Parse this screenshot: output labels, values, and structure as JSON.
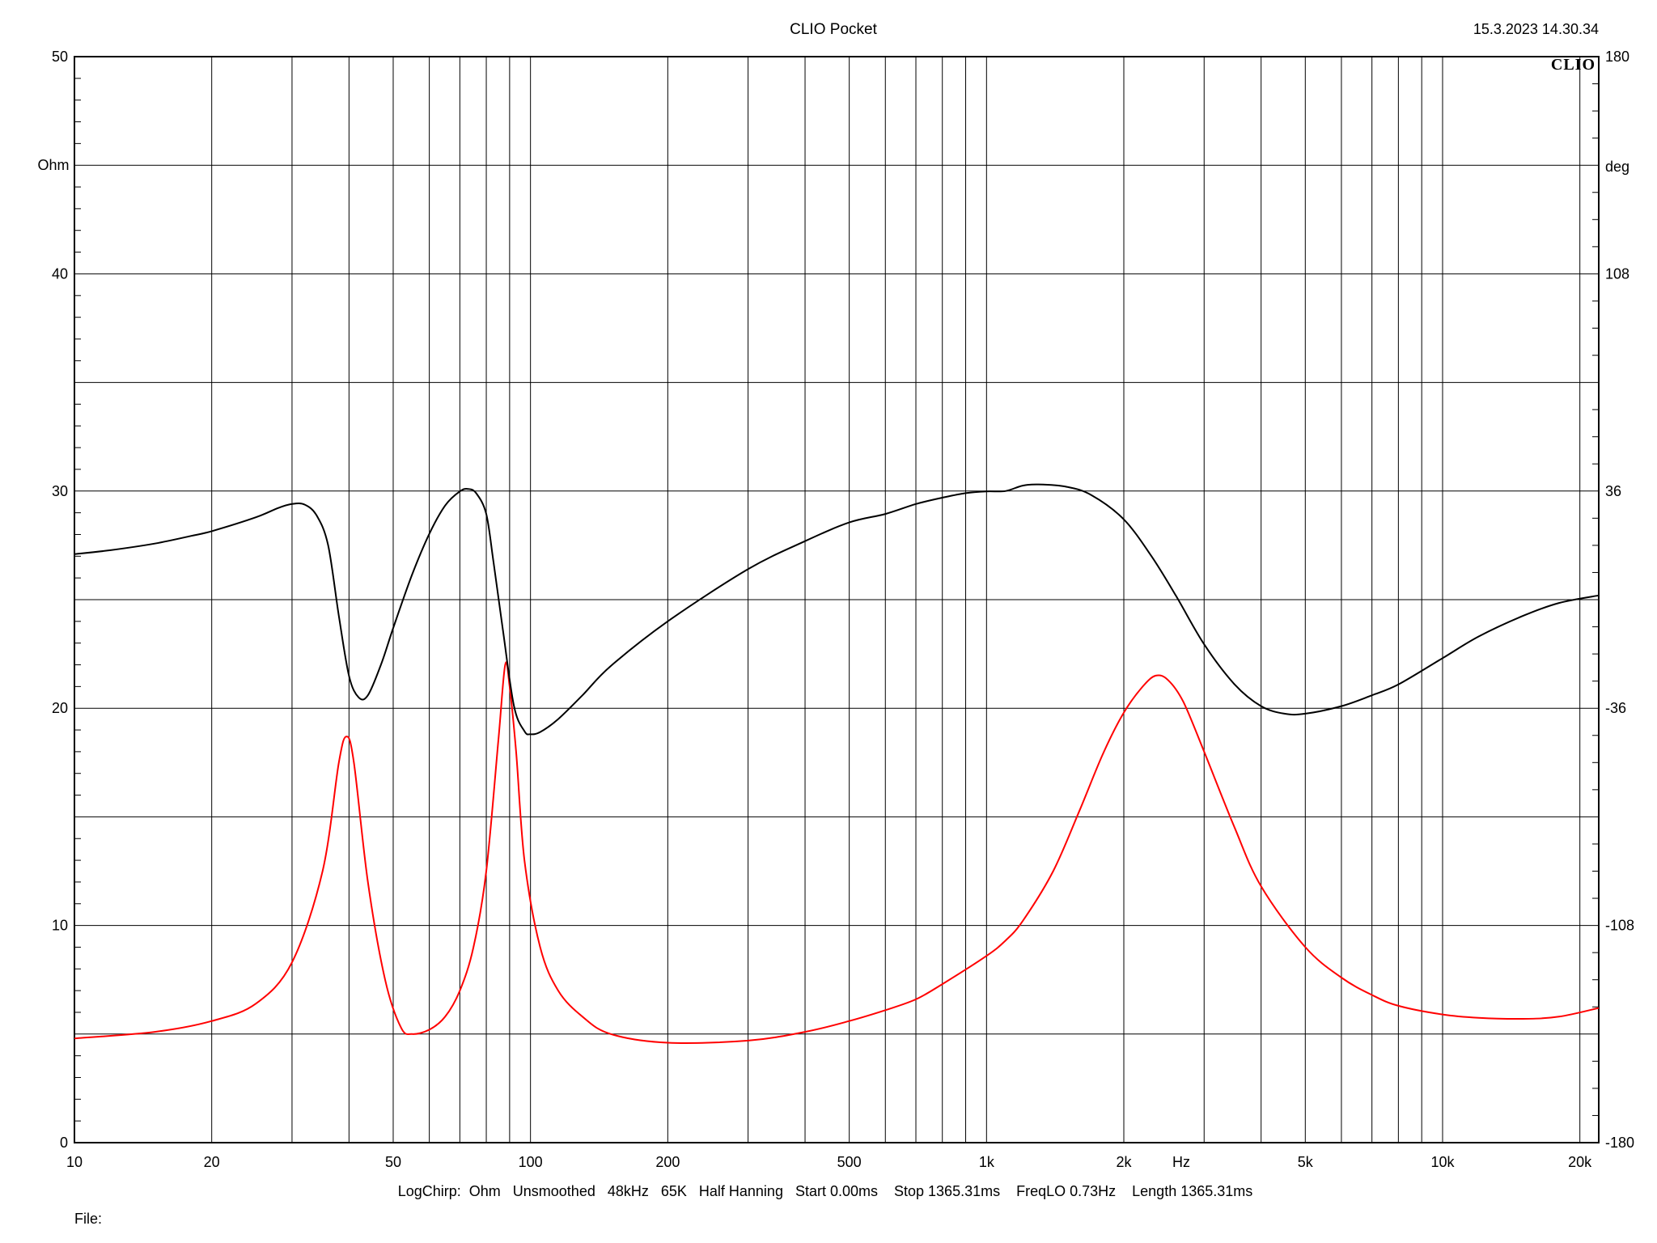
{
  "header": {
    "title": "CLIO Pocket",
    "timestamp": "15.3.2023 14.30.34",
    "logo_text": "CLIO"
  },
  "footer": {
    "settings": "LogChirp:  Ohm   Unsmoothed   48kHz   65K   Half Hanning   Start 0.00ms    Stop 1365.31ms    FreqLO 0.73Hz    Length 1365.31ms",
    "file_label": "File:"
  },
  "chart_data": {
    "type": "line",
    "x_scale": "log",
    "xlim": [
      10,
      22000
    ],
    "x_unit": "Hz",
    "x_tick_labels": [
      {
        "value": 10,
        "label": "10"
      },
      {
        "value": 20,
        "label": "20"
      },
      {
        "value": 50,
        "label": "50"
      },
      {
        "value": 100,
        "label": "100"
      },
      {
        "value": 200,
        "label": "200"
      },
      {
        "value": 500,
        "label": "500"
      },
      {
        "value": 1000,
        "label": "1k"
      },
      {
        "value": 2000,
        "label": "2k"
      },
      {
        "value": 5000,
        "label": "5k"
      },
      {
        "value": 10000,
        "label": "10k"
      },
      {
        "value": 20000,
        "label": "20k"
      }
    ],
    "y_left": {
      "unit": "Ohm",
      "lim": [
        0,
        50
      ],
      "tick_labels": [
        "0",
        "10",
        "20",
        "30",
        "40",
        "50"
      ],
      "tick_values": [
        0,
        10,
        20,
        30,
        40,
        50
      ]
    },
    "y_right": {
      "unit": "deg",
      "lim": [
        -180,
        180
      ],
      "tick_labels": [
        "-180",
        "-108",
        "-36",
        "36",
        "108",
        "180"
      ],
      "tick_values": [
        -180,
        -108,
        -36,
        36,
        108,
        180
      ]
    },
    "grid": true,
    "series": [
      {
        "color": "#ff0000",
        "axis": "left",
        "points": [
          [
            10,
            4.8
          ],
          [
            15,
            5.1
          ],
          [
            20,
            5.6
          ],
          [
            25,
            6.4
          ],
          [
            30,
            8.3
          ],
          [
            35,
            12.5
          ],
          [
            38,
            17.5
          ],
          [
            39.5,
            18.7
          ],
          [
            41,
            17.5
          ],
          [
            44,
            12.0
          ],
          [
            48,
            7.5
          ],
          [
            52,
            5.3
          ],
          [
            55,
            5.0
          ],
          [
            60,
            5.2
          ],
          [
            65,
            5.8
          ],
          [
            70,
            7.0
          ],
          [
            75,
            9.0
          ],
          [
            80,
            12.5
          ],
          [
            85,
            18.5
          ],
          [
            88,
            22.0
          ],
          [
            90,
            21.0
          ],
          [
            93,
            18.0
          ],
          [
            97,
            13.0
          ],
          [
            105,
            9.0
          ],
          [
            115,
            7.0
          ],
          [
            130,
            5.8
          ],
          [
            150,
            5.0
          ],
          [
            200,
            4.6
          ],
          [
            300,
            4.7
          ],
          [
            400,
            5.1
          ],
          [
            500,
            5.6
          ],
          [
            600,
            6.1
          ],
          [
            700,
            6.6
          ],
          [
            800,
            7.3
          ],
          [
            1000,
            8.6
          ],
          [
            1100,
            9.3
          ],
          [
            1200,
            10.2
          ],
          [
            1400,
            12.5
          ],
          [
            1600,
            15.3
          ],
          [
            1800,
            17.9
          ],
          [
            2000,
            19.8
          ],
          [
            2200,
            21.0
          ],
          [
            2350,
            21.5
          ],
          [
            2500,
            21.3
          ],
          [
            2700,
            20.3
          ],
          [
            3000,
            18.0
          ],
          [
            3500,
            14.5
          ],
          [
            4000,
            11.8
          ],
          [
            5000,
            9.0
          ],
          [
            6000,
            7.6
          ],
          [
            7000,
            6.8
          ],
          [
            8000,
            6.3
          ],
          [
            10000,
            5.9
          ],
          [
            12000,
            5.75
          ],
          [
            15000,
            5.7
          ],
          [
            18000,
            5.8
          ],
          [
            22000,
            6.2
          ]
        ]
      },
      {
        "color": "#000000",
        "axis": "right",
        "points": [
          [
            10,
            15.1
          ],
          [
            12,
            16.4
          ],
          [
            15,
            18.6
          ],
          [
            18,
            21.1
          ],
          [
            20,
            22.7
          ],
          [
            25,
            27.3
          ],
          [
            28,
            30.4
          ],
          [
            30,
            31.7
          ],
          [
            32,
            31.5
          ],
          [
            34,
            27.8
          ],
          [
            36,
            18.0
          ],
          [
            38,
            -5.4
          ],
          [
            40,
            -25.3
          ],
          [
            42,
            -32.4
          ],
          [
            44,
            -31.7
          ],
          [
            47,
            -21.6
          ],
          [
            50,
            -9.4
          ],
          [
            55,
            8.3
          ],
          [
            60,
            21.8
          ],
          [
            65,
            31.2
          ],
          [
            70,
            35.9
          ],
          [
            73,
            36.7
          ],
          [
            76,
            35.3
          ],
          [
            80,
            28.4
          ],
          [
            83,
            12.2
          ],
          [
            87,
            -10.1
          ],
          [
            92,
            -35.3
          ],
          [
            97,
            -43.6
          ],
          [
            100,
            -44.6
          ],
          [
            105,
            -43.9
          ],
          [
            115,
            -39.6
          ],
          [
            130,
            -31.7
          ],
          [
            150,
            -22.0
          ],
          [
            200,
            -7.2
          ],
          [
            300,
            10.1
          ],
          [
            400,
            19.4
          ],
          [
            500,
            25.6
          ],
          [
            600,
            28.4
          ],
          [
            700,
            31.7
          ],
          [
            800,
            33.8
          ],
          [
            900,
            35.3
          ],
          [
            1000,
            35.9
          ],
          [
            1100,
            36.0
          ],
          [
            1200,
            37.8
          ],
          [
            1300,
            38.2
          ],
          [
            1500,
            37.4
          ],
          [
            1700,
            34.6
          ],
          [
            2000,
            26.6
          ],
          [
            2300,
            14.4
          ],
          [
            2600,
            1.4
          ],
          [
            3000,
            -14.8
          ],
          [
            3500,
            -28.1
          ],
          [
            4000,
            -35.3
          ],
          [
            4500,
            -37.8
          ],
          [
            5000,
            -37.8
          ],
          [
            6000,
            -35.3
          ],
          [
            7000,
            -31.7
          ],
          [
            8000,
            -28.1
          ],
          [
            10000,
            -19.4
          ],
          [
            12000,
            -12.2
          ],
          [
            15000,
            -5.4
          ],
          [
            18000,
            -1.1
          ],
          [
            22000,
            1.4
          ]
        ]
      }
    ]
  }
}
